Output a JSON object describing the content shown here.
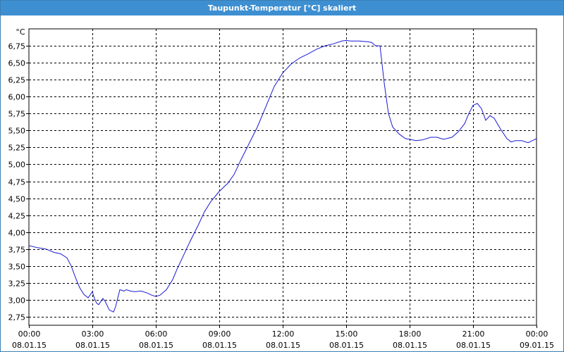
{
  "window": {
    "title": "Taupunkt-Temperatur [°C] skaliert"
  },
  "chart_data": {
    "type": "line",
    "title": "Taupunkt-Temperatur [°C] skaliert",
    "unit_label": "°C",
    "ylim": [
      2.625,
      7.0
    ],
    "y_ticks": [
      2.75,
      3.0,
      3.25,
      3.5,
      3.75,
      4.0,
      4.25,
      4.5,
      4.75,
      5.0,
      5.25,
      5.5,
      5.75,
      6.0,
      6.25,
      6.5,
      6.75
    ],
    "y_tick_labels": [
      "2,75",
      "3,00",
      "3,25",
      "3,50",
      "3,75",
      "4,00",
      "4,25",
      "4,50",
      "4,75",
      "5,00",
      "5,25",
      "5,50",
      "5,75",
      "6,00",
      "6,25",
      "6,50",
      "6,75"
    ],
    "xlim": [
      0,
      24
    ],
    "x_ticks": [
      0,
      3,
      6,
      9,
      12,
      15,
      18,
      21,
      24
    ],
    "x_tick_times": [
      "00:00",
      "03:00",
      "06:00",
      "09:00",
      "12:00",
      "15:00",
      "18:00",
      "21:00",
      "00:00"
    ],
    "x_tick_dates": [
      "08.01.15",
      "08.01.15",
      "08.01.15",
      "08.01.15",
      "08.01.15",
      "08.01.15",
      "08.01.15",
      "08.01.15",
      "09.01.15"
    ],
    "grid": true,
    "line_color": "#1a1ad4",
    "series": [
      {
        "x": [
          0,
          0.4,
          0.8,
          1.2,
          1.5,
          1.8,
          2.0,
          2.2,
          2.4,
          2.6,
          2.8,
          3.0,
          3.1,
          3.2,
          3.3,
          3.5,
          3.6,
          3.8,
          4.0,
          4.1,
          4.3,
          4.5,
          4.6,
          4.8,
          5.0,
          5.3,
          5.6,
          5.8,
          6.0,
          6.2,
          6.5,
          6.8,
          7.0,
          7.3,
          7.6,
          8.0,
          8.3,
          8.6,
          9.0,
          9.4,
          9.7,
          10.0,
          10.4,
          10.8,
          11.2,
          11.6,
          12.0,
          12.4,
          12.8,
          13.2,
          13.6,
          14.0,
          14.4,
          14.8,
          15.0,
          15.2,
          15.6,
          16.0,
          16.2,
          16.4,
          16.6,
          16.8,
          17.0,
          17.2,
          17.5,
          17.8,
          18.0,
          18.3,
          18.6,
          19.0,
          19.3,
          19.6,
          20.0,
          20.3,
          20.6,
          20.8,
          21.0,
          21.2,
          21.4,
          21.6,
          21.8,
          22.0,
          22.3,
          22.6,
          22.8,
          23.0,
          23.3,
          23.6,
          23.8,
          24.0
        ],
        "y": [
          3.8,
          3.77,
          3.75,
          3.7,
          3.68,
          3.62,
          3.5,
          3.33,
          3.18,
          3.08,
          3.03,
          3.12,
          3.02,
          2.95,
          2.93,
          3.02,
          2.98,
          2.85,
          2.82,
          2.9,
          3.15,
          3.13,
          3.15,
          3.13,
          3.12,
          3.13,
          3.1,
          3.07,
          3.05,
          3.07,
          3.15,
          3.3,
          3.45,
          3.65,
          3.85,
          4.1,
          4.3,
          4.45,
          4.6,
          4.72,
          4.85,
          5.05,
          5.3,
          5.55,
          5.85,
          6.15,
          6.35,
          6.48,
          6.57,
          6.63,
          6.7,
          6.75,
          6.78,
          6.82,
          6.83,
          6.82,
          6.82,
          6.81,
          6.8,
          6.75,
          6.75,
          6.2,
          5.75,
          5.55,
          5.45,
          5.38,
          5.37,
          5.35,
          5.36,
          5.4,
          5.4,
          5.37,
          5.4,
          5.48,
          5.6,
          5.75,
          5.87,
          5.9,
          5.82,
          5.65,
          5.72,
          5.68,
          5.52,
          5.38,
          5.33,
          5.35,
          5.35,
          5.32,
          5.35,
          5.38
        ]
      }
    ]
  }
}
